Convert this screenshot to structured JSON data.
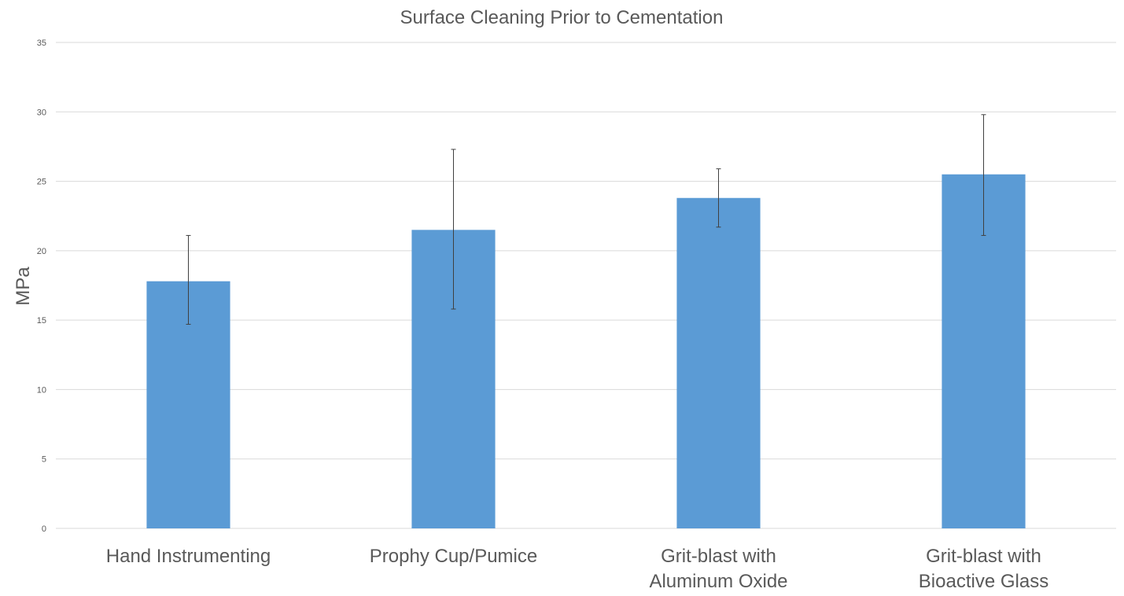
{
  "chart_data": {
    "type": "bar",
    "title": "Surface Cleaning Prior to Cementation",
    "xlabel": "",
    "ylabel": "MPa",
    "ylim": [
      0,
      35
    ],
    "yticks": [
      0,
      5,
      10,
      15,
      20,
      25,
      30,
      35
    ],
    "grid": true,
    "legend": "none",
    "bar_color": "#5b9bd5",
    "categories": [
      [
        "Hand Instrumenting"
      ],
      [
        "Prophy Cup/Pumice"
      ],
      [
        "Grit-blast with",
        "Aluminum Oxide"
      ],
      [
        "Grit-blast with",
        "Bioactive Glass"
      ]
    ],
    "series": [
      {
        "values": [
          17.8,
          21.5,
          23.8,
          25.5
        ],
        "error_low": [
          14.7,
          15.8,
          21.7,
          21.1
        ],
        "error_high": [
          21.1,
          27.3,
          25.9,
          29.8
        ]
      }
    ]
  }
}
